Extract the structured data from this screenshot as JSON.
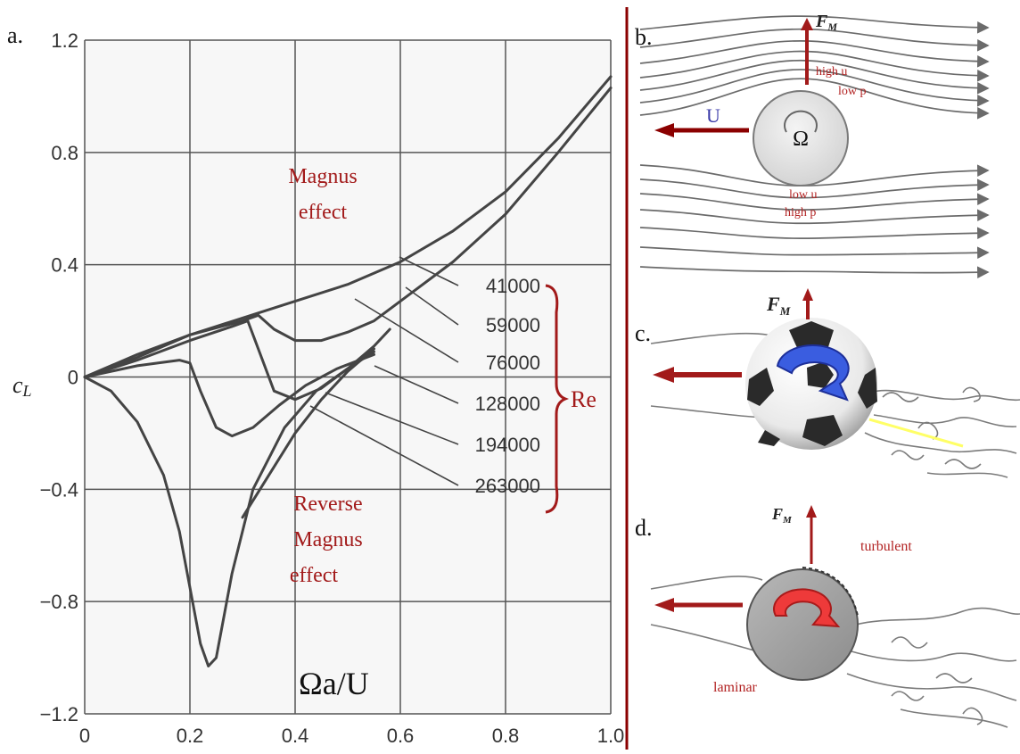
{
  "chart_data": {
    "type": "line",
    "panel_label": "a.",
    "xlabel": "Ωa/U",
    "ylabel": "c_L",
    "xlim": [
      0,
      1.0
    ],
    "ylim": [
      -1.2,
      1.2
    ],
    "grid": true,
    "x_ticks": [
      "0",
      "0.2",
      "0.4",
      "0.6",
      "0.8",
      "1.0"
    ],
    "y_ticks": [
      "1.2",
      "0.8",
      "0.4",
      "0",
      "−0.4",
      "−0.8",
      "−1.2"
    ],
    "annotations": {
      "magnus_line1": "Magnus",
      "magnus_line2": "effect",
      "reverse_line1": "Reverse",
      "reverse_line2": "Magnus",
      "reverse_line3": "effect"
    },
    "re_label": "Re",
    "series": [
      {
        "name": "41000",
        "x": [
          0,
          0.1,
          0.2,
          0.3,
          0.4,
          0.5,
          0.6,
          0.7,
          0.8,
          0.9,
          1.0
        ],
        "y": [
          0,
          0.08,
          0.15,
          0.21,
          0.27,
          0.33,
          0.41,
          0.52,
          0.66,
          0.85,
          1.07
        ]
      },
      {
        "name": "59000",
        "x": [
          0,
          0.1,
          0.2,
          0.3,
          0.33,
          0.36,
          0.4,
          0.45,
          0.5,
          0.55,
          0.6,
          0.7,
          0.8,
          0.9,
          1.0
        ],
        "y": [
          0,
          0.07,
          0.15,
          0.2,
          0.22,
          0.17,
          0.13,
          0.13,
          0.16,
          0.2,
          0.27,
          0.41,
          0.58,
          0.8,
          1.03
        ]
      },
      {
        "name": "76000",
        "x": [
          0,
          0.1,
          0.2,
          0.28,
          0.31,
          0.33,
          0.36,
          0.4,
          0.45,
          0.5,
          0.55,
          0.58
        ],
        "y": [
          0,
          0.06,
          0.13,
          0.18,
          0.2,
          0.1,
          -0.05,
          -0.08,
          -0.04,
          0.03,
          0.11,
          0.17
        ]
      },
      {
        "name": "128000",
        "x": [
          0,
          0.1,
          0.18,
          0.2,
          0.22,
          0.25,
          0.28,
          0.32,
          0.37,
          0.42,
          0.48,
          0.55
        ],
        "y": [
          0,
          0.04,
          0.06,
          0.05,
          -0.05,
          -0.18,
          -0.21,
          -0.18,
          -0.1,
          -0.03,
          0.03,
          0.08
        ]
      },
      {
        "name": "194000",
        "x": [
          0,
          0.05,
          0.1,
          0.15,
          0.18,
          0.2,
          0.22,
          0.235,
          0.25,
          0.28,
          0.32,
          0.38,
          0.44,
          0.5,
          0.55
        ],
        "y": [
          0,
          -0.05,
          -0.16,
          -0.35,
          -0.55,
          -0.75,
          -0.95,
          -1.03,
          -1.0,
          -0.7,
          -0.4,
          -0.18,
          -0.05,
          0.03,
          0.09
        ]
      },
      {
        "name": "263000",
        "x": [
          0.3,
          0.35,
          0.4,
          0.45,
          0.5,
          0.55
        ],
        "y": [
          -0.5,
          -0.35,
          -0.2,
          -0.08,
          0.02,
          0.1
        ]
      }
    ]
  },
  "panel_b": {
    "label": "b.",
    "force": "F",
    "force_sub": "M",
    "velocity": "U",
    "omega": "Ω",
    "top_text1": "high u",
    "top_text2": "low p",
    "bottom_text1": "low u",
    "bottom_text2": "high p"
  },
  "panel_c": {
    "label": "c.",
    "force": "F",
    "force_sub": "M"
  },
  "panel_d": {
    "label": "d.",
    "force": "F",
    "force_sub": "M",
    "turbulent": "turbulent",
    "laminar": "laminar"
  },
  "colors": {
    "curve": "#444444",
    "grid": "#555555",
    "accent_red": "#a21a1a",
    "arrow_red": "#8b0000",
    "streamline": "#6b6b6b",
    "blue_arrow": "#2f4fd8",
    "red_arrow": "#e03030"
  }
}
